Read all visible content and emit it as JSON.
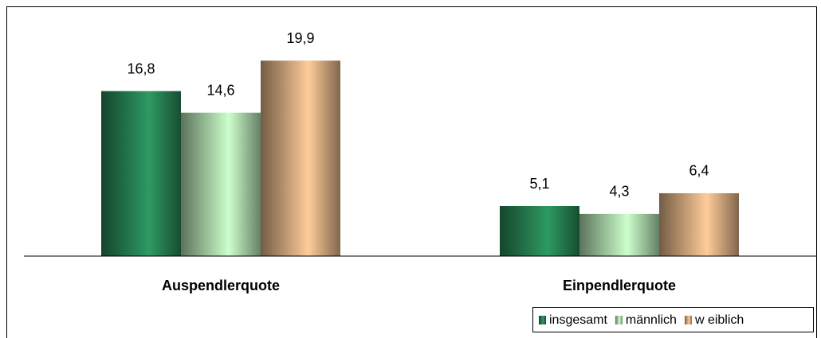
{
  "chart_data": {
    "type": "bar",
    "categories": [
      "Auspendlerquote",
      "Einpendlerquote"
    ],
    "series": [
      {
        "name": "insgesamt",
        "color": "#2e9a62",
        "values": [
          16.8,
          5.1
        ],
        "value_labels": [
          "16,8",
          "5,1"
        ]
      },
      {
        "name": "männlich",
        "color": "#ccffcc",
        "values": [
          14.6,
          4.3
        ],
        "value_labels": [
          "14,6",
          "4,3"
        ]
      },
      {
        "name": "w eiblich",
        "color": "#ffcc99",
        "values": [
          19.9,
          6.4
        ],
        "value_labels": [
          "19,9",
          "6,4"
        ]
      }
    ],
    "ylim": [
      0,
      20
    ],
    "legend": "bottom-right"
  }
}
